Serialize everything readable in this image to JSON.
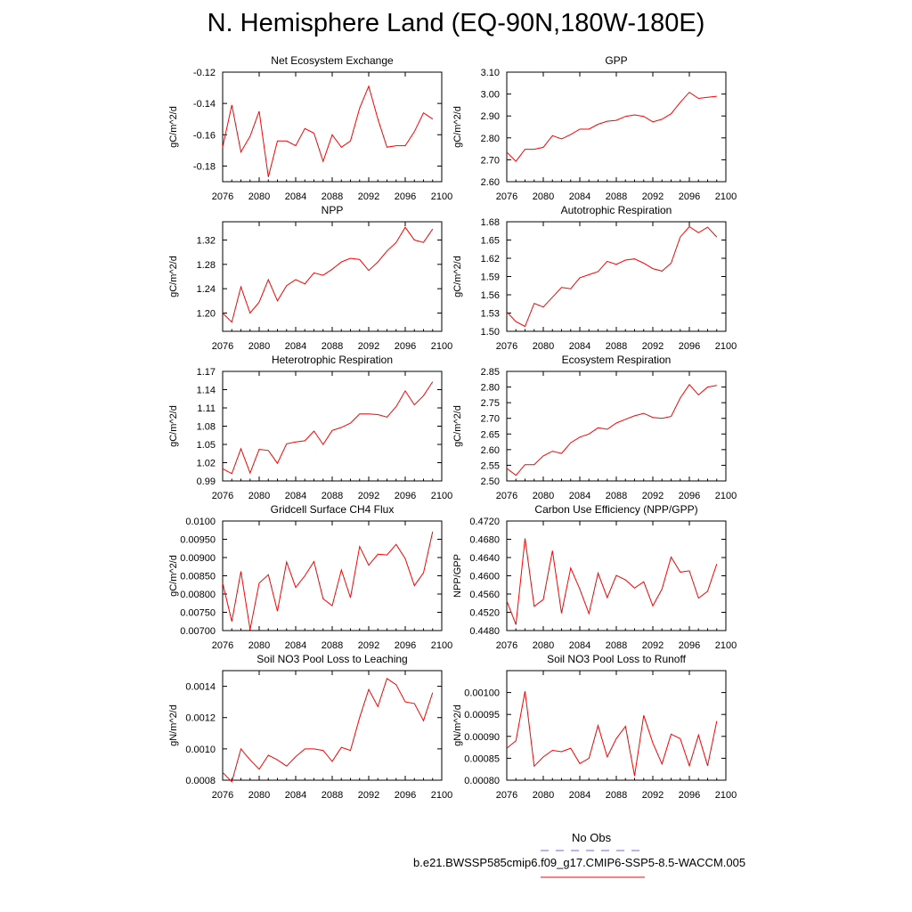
{
  "title": "N. Hemisphere Land (EQ-90N,180W-180E)",
  "colors": {
    "model": "#ff0000",
    "obs": "#6b6bd6"
  },
  "legend": {
    "obs_label": "No Obs",
    "model_label": "b.e21.BWSSP585cmip6.f09_g17.CMIP6-SSP5-8.5-WACCM.005"
  },
  "chart_data": [
    {
      "type": "line",
      "title": "Net Ecosystem Exchange",
      "xlabel": "",
      "ylabel": "gC/m^2/d",
      "xlim": [
        2076,
        2100
      ],
      "ylim": [
        -0.19,
        -0.12
      ],
      "xticks": [
        "2076",
        "2080",
        "2084",
        "2088",
        "2092",
        "2096",
        "2100"
      ],
      "yticks": [
        "-0.12",
        "-0.14",
        "-0.16",
        "-0.18"
      ],
      "x": [
        2076,
        2077,
        2078,
        2079,
        2080,
        2081,
        2082,
        2083,
        2084,
        2085,
        2086,
        2087,
        2088,
        2089,
        2090,
        2091,
        2092,
        2093,
        2094,
        2095,
        2096,
        2097,
        2098,
        2099
      ],
      "values": [
        -0.168,
        -0.141,
        -0.171,
        -0.161,
        -0.145,
        -0.187,
        -0.164,
        -0.164,
        -0.167,
        -0.156,
        -0.159,
        -0.177,
        -0.16,
        -0.168,
        -0.164,
        -0.143,
        -0.129,
        -0.15,
        -0.168,
        -0.167,
        -0.167,
        -0.158,
        -0.146,
        -0.15
      ]
    },
    {
      "type": "line",
      "title": "GPP",
      "xlabel": "",
      "ylabel": "gC/m^2/d",
      "xlim": [
        2076,
        2100
      ],
      "ylim": [
        2.6,
        3.1
      ],
      "xticks": [
        "2076",
        "2080",
        "2084",
        "2088",
        "2092",
        "2096",
        "2100"
      ],
      "yticks": [
        "3.10",
        "3.00",
        "2.90",
        "2.80",
        "2.70",
        "2.60"
      ],
      "x": [
        2076,
        2077,
        2078,
        2079,
        2080,
        2081,
        2082,
        2083,
        2084,
        2085,
        2086,
        2087,
        2088,
        2089,
        2090,
        2091,
        2092,
        2093,
        2094,
        2095,
        2096,
        2097,
        2098,
        2099
      ],
      "values": [
        2.735,
        2.693,
        2.748,
        2.748,
        2.757,
        2.81,
        2.795,
        2.815,
        2.84,
        2.84,
        2.862,
        2.876,
        2.88,
        2.898,
        2.905,
        2.898,
        2.873,
        2.885,
        2.91,
        2.962,
        3.008,
        2.98,
        2.985,
        2.99
      ]
    },
    {
      "type": "line",
      "title": "NPP",
      "xlabel": "",
      "ylabel": "gC/m^2/d",
      "xlim": [
        2076,
        2100
      ],
      "ylim": [
        1.17,
        1.35
      ],
      "xticks": [
        "2076",
        "2080",
        "2084",
        "2088",
        "2092",
        "2096",
        "2100"
      ],
      "yticks": [
        "1.32",
        "1.28",
        "1.24",
        "1.20"
      ],
      "x": [
        2076,
        2077,
        2078,
        2079,
        2080,
        2081,
        2082,
        2083,
        2084,
        2085,
        2086,
        2087,
        2088,
        2089,
        2090,
        2091,
        2092,
        2093,
        2094,
        2095,
        2096,
        2097,
        2098,
        2099
      ],
      "values": [
        1.2,
        1.185,
        1.243,
        1.2,
        1.218,
        1.255,
        1.22,
        1.245,
        1.255,
        1.248,
        1.266,
        1.262,
        1.272,
        1.284,
        1.29,
        1.288,
        1.27,
        1.284,
        1.302,
        1.316,
        1.341,
        1.32,
        1.316,
        1.338
      ]
    },
    {
      "type": "line",
      "title": "Autotrophic Respiration",
      "xlabel": "",
      "ylabel": "gC/m^2/d",
      "xlim": [
        2076,
        2100
      ],
      "ylim": [
        1.5,
        1.68
      ],
      "xticks": [
        "2076",
        "2080",
        "2084",
        "2088",
        "2092",
        "2096",
        "2100"
      ],
      "yticks": [
        "1.68",
        "1.65",
        "1.62",
        "1.59",
        "1.56",
        "1.53",
        "1.50"
      ],
      "x": [
        2076,
        2077,
        2078,
        2079,
        2080,
        2081,
        2082,
        2083,
        2084,
        2085,
        2086,
        2087,
        2088,
        2089,
        2090,
        2091,
        2092,
        2093,
        2094,
        2095,
        2096,
        2097,
        2098,
        2099
      ],
      "values": [
        1.532,
        1.516,
        1.508,
        1.546,
        1.54,
        1.556,
        1.572,
        1.57,
        1.588,
        1.593,
        1.598,
        1.615,
        1.61,
        1.617,
        1.619,
        1.612,
        1.603,
        1.599,
        1.612,
        1.655,
        1.672,
        1.662,
        1.671,
        1.655
      ]
    },
    {
      "type": "line",
      "title": "Heterotrophic Respiration",
      "xlabel": "",
      "ylabel": "gC/m^2/d",
      "xlim": [
        2076,
        2100
      ],
      "ylim": [
        0.99,
        1.17
      ],
      "xticks": [
        "2076",
        "2080",
        "2084",
        "2088",
        "2092",
        "2096",
        "2100"
      ],
      "yticks": [
        "1.17",
        "1.14",
        "1.11",
        "1.08",
        "1.05",
        "1.02",
        "0.99"
      ],
      "x": [
        2076,
        2077,
        2078,
        2079,
        2080,
        2081,
        2082,
        2083,
        2084,
        2085,
        2086,
        2087,
        2088,
        2089,
        2090,
        2091,
        2092,
        2093,
        2094,
        2095,
        2096,
        2097,
        2098,
        2099
      ],
      "values": [
        1.01,
        1.002,
        1.043,
        1.003,
        1.042,
        1.04,
        1.019,
        1.051,
        1.054,
        1.056,
        1.072,
        1.05,
        1.073,
        1.078,
        1.085,
        1.1,
        1.1,
        1.099,
        1.095,
        1.112,
        1.138,
        1.115,
        1.13,
        1.153
      ]
    },
    {
      "type": "line",
      "title": "Ecosystem Respiration",
      "xlabel": "",
      "ylabel": "gC/m^2/d",
      "xlim": [
        2076,
        2100
      ],
      "ylim": [
        2.5,
        2.85
      ],
      "xticks": [
        "2076",
        "2080",
        "2084",
        "2088",
        "2092",
        "2096",
        "2100"
      ],
      "yticks": [
        "2.85",
        "2.80",
        "2.75",
        "2.70",
        "2.65",
        "2.60",
        "2.55",
        "2.50"
      ],
      "x": [
        2076,
        2077,
        2078,
        2079,
        2080,
        2081,
        2082,
        2083,
        2084,
        2085,
        2086,
        2087,
        2088,
        2089,
        2090,
        2091,
        2092,
        2093,
        2094,
        2095,
        2096,
        2097,
        2098,
        2099
      ],
      "values": [
        2.54,
        2.518,
        2.552,
        2.552,
        2.58,
        2.595,
        2.588,
        2.622,
        2.64,
        2.65,
        2.67,
        2.665,
        2.685,
        2.697,
        2.708,
        2.716,
        2.703,
        2.7,
        2.706,
        2.765,
        2.808,
        2.775,
        2.8,
        2.805
      ]
    },
    {
      "type": "line",
      "title": "Gridcell Surface CH4 Flux",
      "xlabel": "",
      "ylabel": "gC/m^2/d",
      "xlim": [
        2076,
        2100
      ],
      "ylim": [
        0.007,
        0.01
      ],
      "xticks": [
        "2076",
        "2080",
        "2084",
        "2088",
        "2092",
        "2096",
        "2100"
      ],
      "yticks": [
        "0.0100",
        "0.00950",
        "0.00900",
        "0.00850",
        "0.00800",
        "0.00750",
        "0.00700"
      ],
      "x": [
        2076,
        2077,
        2078,
        2079,
        2080,
        2081,
        2082,
        2083,
        2084,
        2085,
        2086,
        2087,
        2088,
        2089,
        2090,
        2091,
        2092,
        2093,
        2094,
        2095,
        2096,
        2097,
        2098,
        2099
      ],
      "values": [
        0.0083,
        0.00725,
        0.00862,
        0.00703,
        0.0083,
        0.00853,
        0.00753,
        0.00888,
        0.00818,
        0.0085,
        0.00889,
        0.00787,
        0.00768,
        0.00866,
        0.0079,
        0.0093,
        0.00879,
        0.00909,
        0.00907,
        0.00936,
        0.00897,
        0.00823,
        0.00858,
        0.00971
      ]
    },
    {
      "type": "line",
      "title": "Carbon Use Efficiency (NPP/GPP)",
      "xlabel": "",
      "ylabel": "NPP/GPP",
      "xlim": [
        2076,
        2100
      ],
      "ylim": [
        0.448,
        0.472
      ],
      "xticks": [
        "2076",
        "2080",
        "2084",
        "2088",
        "2092",
        "2096",
        "2100"
      ],
      "yticks": [
        "0.4720",
        "0.4680",
        "0.4640",
        "0.4600",
        "0.4560",
        "0.4520",
        "0.4480"
      ],
      "x": [
        2076,
        2077,
        2078,
        2079,
        2080,
        2081,
        2082,
        2083,
        2084,
        2085,
        2086,
        2087,
        2088,
        2089,
        2090,
        2091,
        2092,
        2093,
        2094,
        2095,
        2096,
        2097,
        2098,
        2099
      ],
      "values": [
        0.4545,
        0.4493,
        0.4682,
        0.4533,
        0.4548,
        0.4655,
        0.4518,
        0.4617,
        0.4571,
        0.4517,
        0.4606,
        0.4552,
        0.4601,
        0.4591,
        0.4573,
        0.4587,
        0.4534,
        0.4571,
        0.4641,
        0.4608,
        0.4611,
        0.4551,
        0.4566,
        0.4626
      ]
    },
    {
      "type": "line",
      "title": "Soil NO3 Pool Loss to Leaching",
      "xlabel": "",
      "ylabel": "gN/m^2/d",
      "xlim": [
        2076,
        2100
      ],
      "ylim": [
        0.0008,
        0.0015
      ],
      "xticks": [
        "2076",
        "2080",
        "2084",
        "2088",
        "2092",
        "2096",
        "2100"
      ],
      "yticks": [
        "0.0014",
        "0.0012",
        "0.0010",
        "0.0008"
      ],
      "x": [
        2076,
        2077,
        2078,
        2079,
        2080,
        2081,
        2082,
        2083,
        2084,
        2085,
        2086,
        2087,
        2088,
        2089,
        2090,
        2091,
        2092,
        2093,
        2094,
        2095,
        2096,
        2097,
        2098,
        2099
      ],
      "values": [
        0.00085,
        0.00079,
        0.001,
        0.00093,
        0.00087,
        0.00096,
        0.00093,
        0.00089,
        0.00095,
        0.001,
        0.001,
        0.00099,
        0.00092,
        0.00101,
        0.00099,
        0.0012,
        0.00138,
        0.00127,
        0.00145,
        0.00141,
        0.0013,
        0.00129,
        0.00118,
        0.00136
      ]
    },
    {
      "type": "line",
      "title": "Soil NO3 Pool Loss to Runoff",
      "xlabel": "",
      "ylabel": "gN/m^2/d",
      "xlim": [
        2076,
        2100
      ],
      "ylim": [
        0.0008,
        0.00105
      ],
      "xticks": [
        "2076",
        "2080",
        "2084",
        "2088",
        "2092",
        "2096",
        "2100"
      ],
      "yticks": [
        "0.00100",
        "0.00095",
        "0.00090",
        "0.00085",
        "0.00080"
      ],
      "x": [
        2076,
        2077,
        2078,
        2079,
        2080,
        2081,
        2082,
        2083,
        2084,
        2085,
        2086,
        2087,
        2088,
        2089,
        2090,
        2091,
        2092,
        2093,
        2094,
        2095,
        2096,
        2097,
        2098,
        2099
      ],
      "values": [
        0.000873,
        0.00089,
        0.001003,
        0.000832,
        0.000853,
        0.000868,
        0.000865,
        0.000873,
        0.000838,
        0.00085,
        0.000925,
        0.000853,
        0.000895,
        0.000923,
        0.00081,
        0.000948,
        0.000885,
        0.000837,
        0.000905,
        0.000895,
        0.000833,
        0.000903,
        0.000833,
        0.000935
      ]
    }
  ]
}
